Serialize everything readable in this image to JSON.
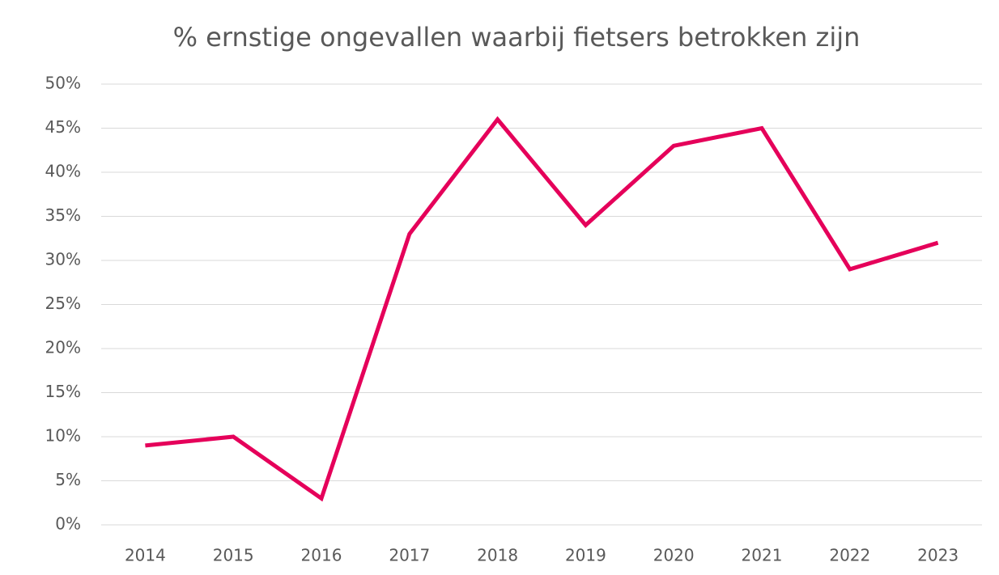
{
  "chart_data": {
    "type": "line",
    "title": "% ernstige ongevallen waarbij fietsers betrokken zijn",
    "categories": [
      "2014",
      "2015",
      "2016",
      "2017",
      "2018",
      "2019",
      "2020",
      "2021",
      "2022",
      "2023"
    ],
    "series": [
      {
        "name": "% ernstige ongevallen waarbij fietsers betrokken zijn",
        "color": "#e5005a",
        "values": [
          9,
          10,
          3,
          33,
          46,
          34,
          43,
          45,
          29,
          32
        ]
      }
    ],
    "ylim": [
      0,
      50
    ],
    "yticks": [
      {
        "value": 0,
        "label": "0%"
      },
      {
        "value": 5,
        "label": "5%"
      },
      {
        "value": 10,
        "label": "10%"
      },
      {
        "value": 15,
        "label": "15%"
      },
      {
        "value": 20,
        "label": "20%"
      },
      {
        "value": 25,
        "label": "25%"
      },
      {
        "value": 30,
        "label": "30%"
      },
      {
        "value": 35,
        "label": "35%"
      },
      {
        "value": 40,
        "label": "40%"
      },
      {
        "value": 45,
        "label": "45%"
      },
      {
        "value": 50,
        "label": "50%"
      }
    ],
    "grid": true
  }
}
